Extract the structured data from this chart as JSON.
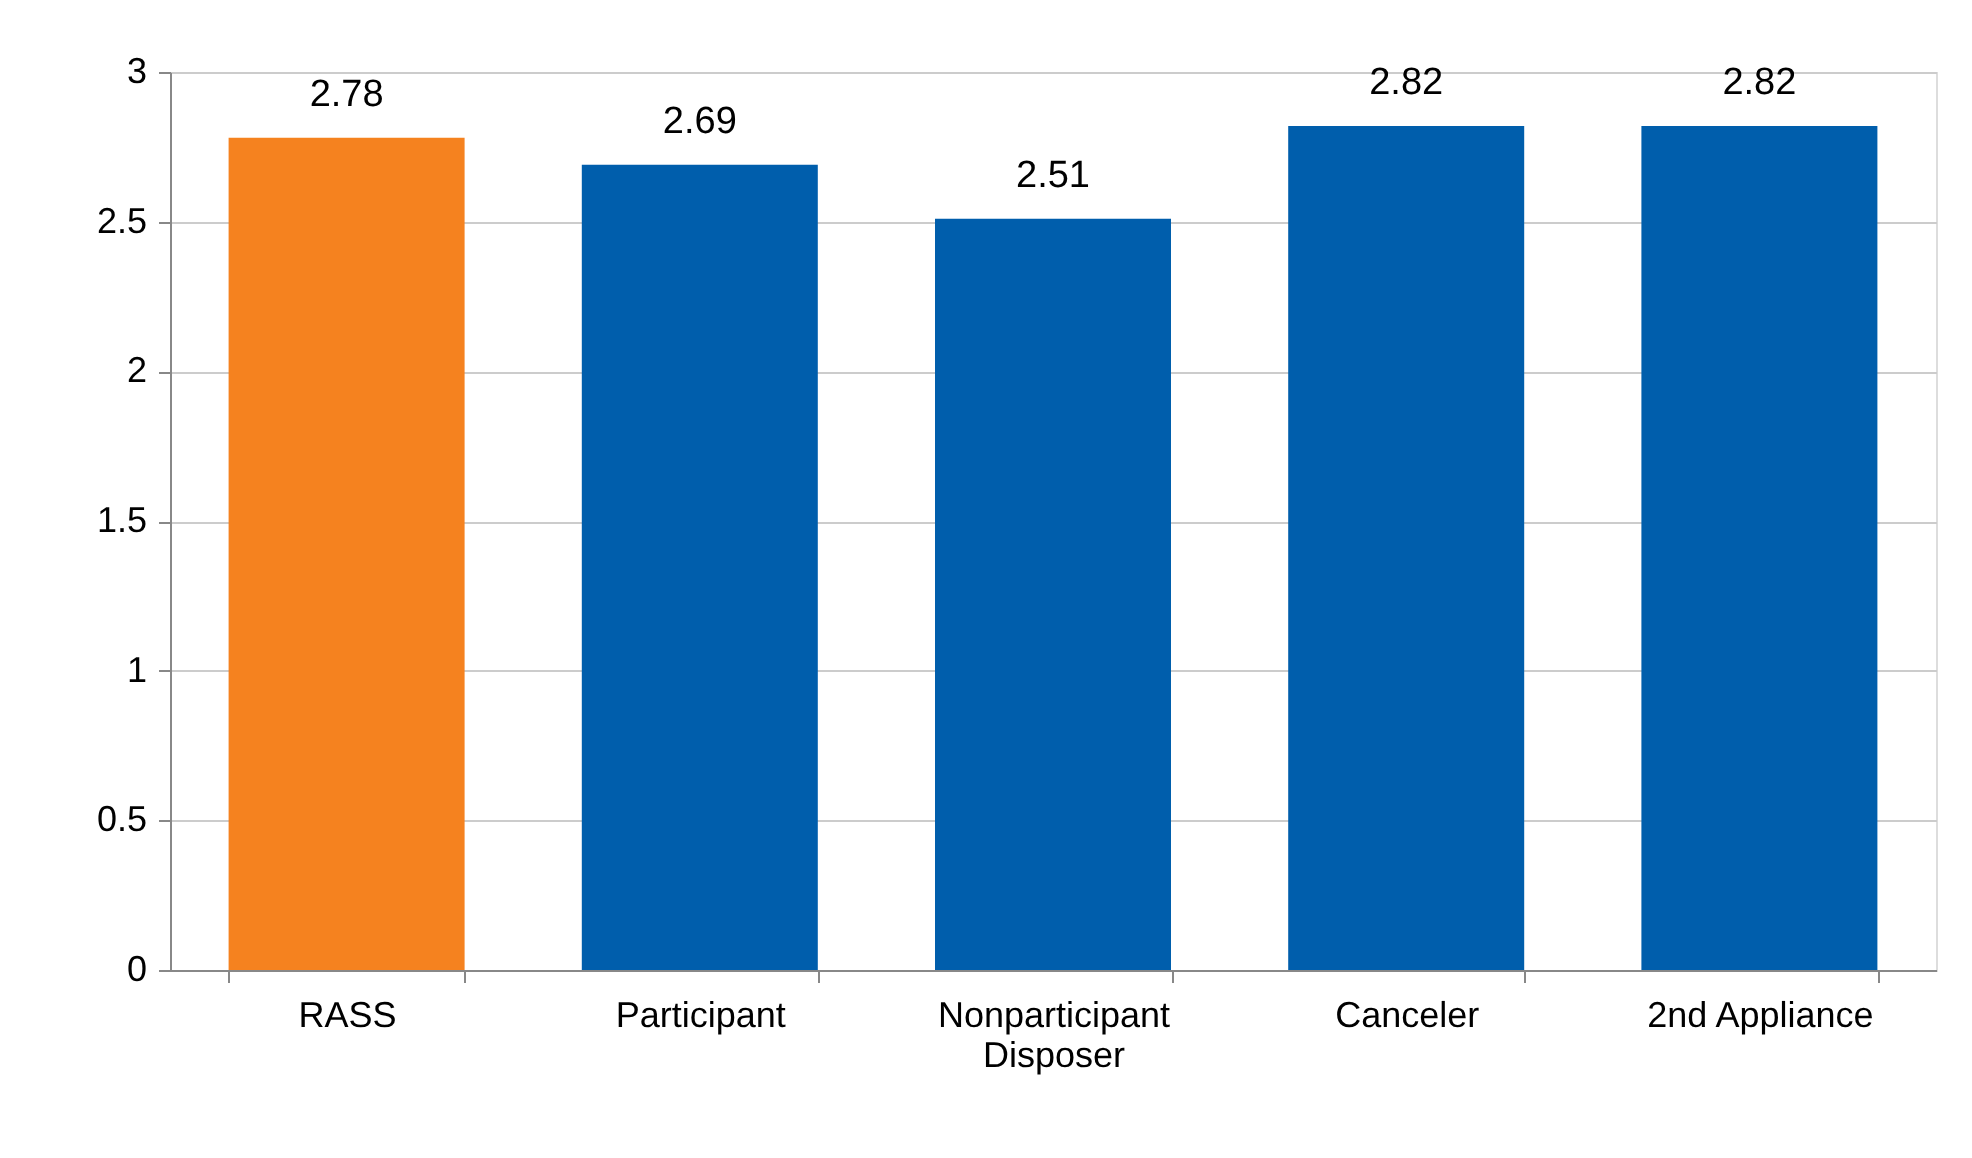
{
  "chart_data": {
    "type": "bar",
    "categories": [
      "RASS",
      "Participant",
      "Nonparticipant\nDisposer",
      "Canceler",
      "2nd Appliance"
    ],
    "values": [
      2.78,
      2.69,
      2.51,
      2.82,
      2.82
    ],
    "colors": [
      "#f5821f",
      "#005eac",
      "#005eac",
      "#005eac",
      "#005eac"
    ],
    "ylim": [
      0,
      3
    ],
    "yticks": [
      0,
      0.5,
      1,
      1.5,
      2,
      2.5,
      3
    ],
    "grid": "y",
    "data_labels": true
  }
}
